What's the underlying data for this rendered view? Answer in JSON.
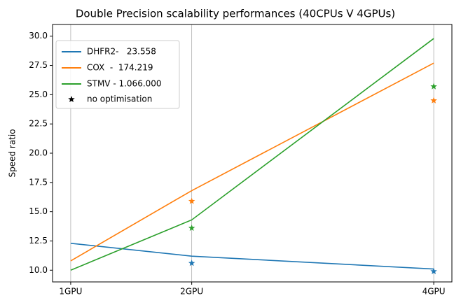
{
  "chart_data": {
    "type": "line",
    "title": "Double Precision scalability performances (40CPUs V 4GPUs)",
    "ylabel": "Speed ratio",
    "x": [
      1,
      2,
      4
    ],
    "xlim": [
      0.85,
      4.15
    ],
    "xticks": [
      {
        "value": 1,
        "label": "1GPU"
      },
      {
        "value": 2,
        "label": "2GPU"
      },
      {
        "value": 4,
        "label": "4GPU"
      }
    ],
    "ylim": [
      9,
      31
    ],
    "yticks": [
      {
        "value": 10,
        "label": "10.0"
      },
      {
        "value": 12.5,
        "label": "12.5"
      },
      {
        "value": 15,
        "label": "15.0"
      },
      {
        "value": 17.5,
        "label": "17.5"
      },
      {
        "value": 20,
        "label": "20.0"
      },
      {
        "value": 22.5,
        "label": "22.5"
      },
      {
        "value": 25,
        "label": "25.0"
      },
      {
        "value": 27.5,
        "label": "27.5"
      },
      {
        "value": 30,
        "label": "30.0"
      }
    ],
    "grid": "x",
    "legend": "upper left",
    "series": [
      {
        "name": "DHFR2-   23.558",
        "color": "#1f77b4",
        "values": [
          12.3,
          11.2,
          10.1
        ],
        "no_optimisation_values": [
          null,
          10.6,
          9.9
        ]
      },
      {
        "name": "COX  -  174.219",
        "color": "#ff7f0e",
        "values": [
          10.8,
          16.8,
          27.7
        ],
        "no_optimisation_values": [
          null,
          15.9,
          24.5
        ]
      },
      {
        "name": "STMV - 1.066.000",
        "color": "#2ca02c",
        "values": [
          10.0,
          14.3,
          29.8
        ],
        "no_optimisation_values": [
          null,
          13.6,
          25.7
        ]
      }
    ],
    "marker_legend": {
      "name": "no optimisation",
      "color": "#000000"
    }
  }
}
